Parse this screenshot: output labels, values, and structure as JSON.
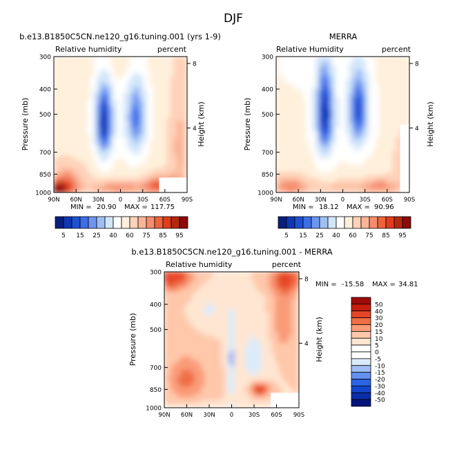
{
  "page_title": "DJF",
  "colors": {
    "cmap_abs": [
      "#0a1e7d",
      "#0f37b4",
      "#1e50d2",
      "#3c6ee6",
      "#6e96f0",
      "#a0bef5",
      "#d2e6fa",
      "#ffffff",
      "#fff0dc",
      "#ffd2b9",
      "#fab496",
      "#f58c6e",
      "#eb643c",
      "#e13c1e",
      "#b4280f",
      "#8c0a0a"
    ],
    "cmap_diff": [
      "#05147d",
      "#0a2daa",
      "#1446cd",
      "#2d64e6",
      "#6491f0",
      "#a0bef5",
      "#dcebfa",
      "#ffffff",
      "#ffe6d2",
      "#ffc8aa",
      "#fa9b78",
      "#f06e46",
      "#e64628",
      "#c81e0f",
      "#a00a0a"
    ]
  },
  "chart_data": [
    {
      "type": "heatmap",
      "title": "b.e13.B1850C5CN.ne120_g16.tuning.001 (yrs 1-9)",
      "left_label": "Relative humidity",
      "right_label": "percent",
      "ylabel": "Pressure (mb)",
      "y2label": "Height (km)",
      "yticks": [
        "300",
        "400",
        "500",
        "700",
        "850",
        "1000"
      ],
      "ytick_values": [
        300,
        400,
        500,
        700,
        850,
        1000
      ],
      "y2ticks": [
        "8",
        "4"
      ],
      "y2tick_values": [
        8,
        4
      ],
      "xticks": [
        "90N",
        "60N",
        "30N",
        "0",
        "30S",
        "60S",
        "90S"
      ],
      "xtick_values": [
        90,
        60,
        30,
        0,
        -30,
        -60,
        -90
      ],
      "xlim": [
        90,
        -90
      ],
      "ylim": [
        300,
        1000
      ],
      "min_label": "MIN =",
      "min_value": "20.90",
      "max_label": "MAX =",
      "max_value": "117.75",
      "colorbar_labels": [
        "5",
        "15",
        "25",
        "40",
        "60",
        "75",
        "85",
        "95"
      ],
      "field": "model"
    },
    {
      "type": "heatmap",
      "title": "MERRA",
      "left_label": "Relative Humidity",
      "right_label": "percent",
      "ylabel": "Pressure (mb)",
      "y2label": "Height (km)",
      "yticks": [
        "300",
        "400",
        "500",
        "700",
        "850",
        "1000"
      ],
      "ytick_values": [
        300,
        400,
        500,
        700,
        850,
        1000
      ],
      "y2ticks": [
        "8",
        "4"
      ],
      "y2tick_values": [
        8,
        4
      ],
      "xticks": [
        "90N",
        "60N",
        "30N",
        "0",
        "30S",
        "60S",
        "90S"
      ],
      "xtick_values": [
        90,
        60,
        30,
        0,
        -30,
        -60,
        -90
      ],
      "xlim": [
        90,
        -90
      ],
      "ylim": [
        300,
        1000
      ],
      "min_label": "MIN =",
      "min_value": "18.12",
      "max_label": "MAX =",
      "max_value": "90.96",
      "colorbar_labels": [
        "5",
        "15",
        "25",
        "40",
        "60",
        "75",
        "85",
        "95"
      ],
      "field": "obs"
    },
    {
      "type": "heatmap",
      "title": "b.e13.B1850C5CN.ne120_g16.tuning.001 - MERRA",
      "left_label": "Relative humidity",
      "right_label": "percent",
      "ylabel": "Pressure (mb)",
      "y2label": "Height (km)",
      "yticks": [
        "300",
        "400",
        "500",
        "700",
        "850",
        "1000"
      ],
      "ytick_values": [
        300,
        400,
        500,
        700,
        850,
        1000
      ],
      "y2ticks": [
        "8",
        "4"
      ],
      "y2tick_values": [
        8,
        4
      ],
      "xticks": [
        "90N",
        "60N",
        "30N",
        "0",
        "30S",
        "60S",
        "90S"
      ],
      "xtick_values": [
        90,
        60,
        30,
        0,
        -30,
        -60,
        -90
      ],
      "xlim": [
        90,
        -90
      ],
      "ylim": [
        300,
        1000
      ],
      "min_label": "MIN =",
      "min_value": "-15.58",
      "max_label": "MAX =",
      "max_value": "34.81",
      "colorbar_labels": [
        "50",
        "40",
        "30",
        "20",
        "15",
        "10",
        "5",
        "0",
        "-5",
        "-10",
        "-15",
        "-20",
        "-30",
        "-40",
        "-50"
      ],
      "field": "diff"
    }
  ]
}
